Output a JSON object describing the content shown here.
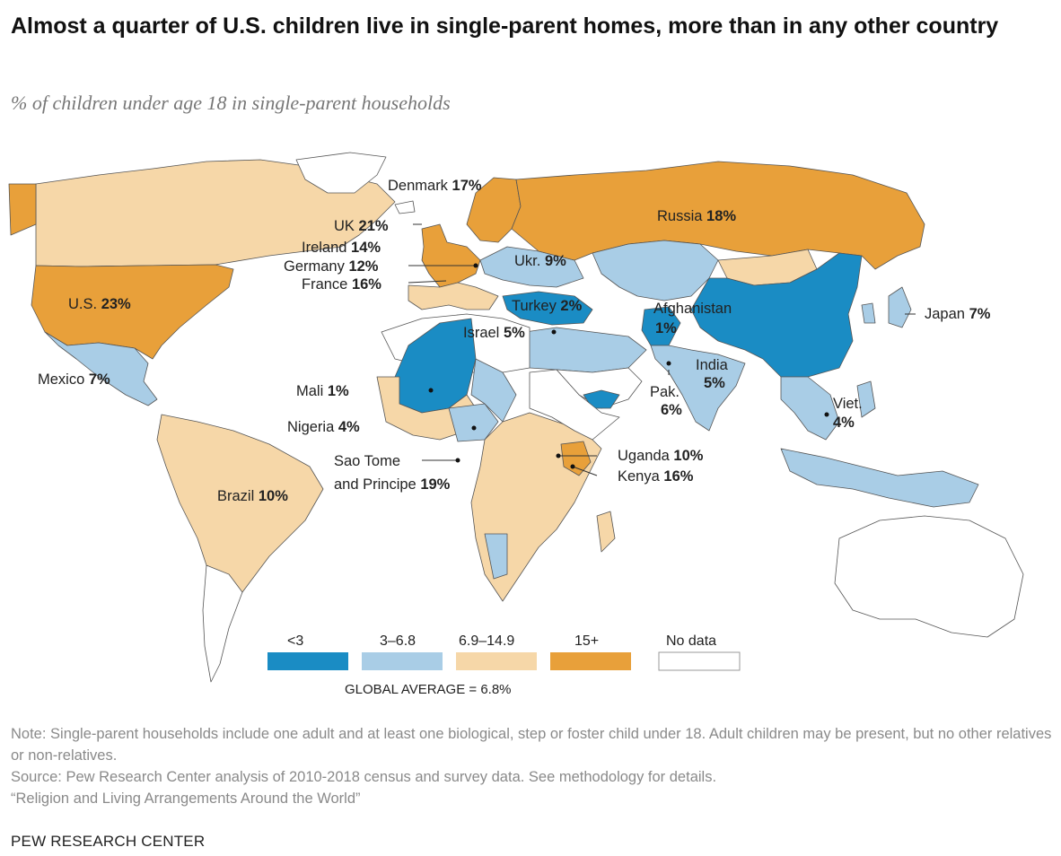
{
  "title": "Almost a quarter of U.S. children live in single-parent homes, more than in any other country",
  "subtitle": "% of children under age 18 in single-parent households",
  "colors": {
    "lt3": "#1a8cc4",
    "c3_6_8": "#a9cde6",
    "c6_9_14_9": "#f6d7a8",
    "c15plus": "#e8a03a",
    "no_data": "#ffffff",
    "border": "#444444"
  },
  "legend": {
    "items": [
      {
        "label": "<3",
        "color": "#1a8cc4"
      },
      {
        "label": "3–6.8",
        "color": "#a9cde6"
      },
      {
        "label": "6.9–14.9",
        "color": "#f6d7a8"
      },
      {
        "label": "15+",
        "color": "#e8a03a"
      },
      {
        "label": "No data",
        "color": "#ffffff"
      }
    ],
    "global_average": "GLOBAL AVERAGE = 6.8%"
  },
  "labels": {
    "denmark": {
      "name": "Denmark",
      "value": "17%"
    },
    "uk": {
      "name": "UK",
      "value": "21%"
    },
    "ireland": {
      "name": "Ireland",
      "value": "14%"
    },
    "germany": {
      "name": "Germany",
      "value": "12%"
    },
    "france": {
      "name": "France",
      "value": "16%"
    },
    "us": {
      "name": "U.S.",
      "value": "23%"
    },
    "mexico": {
      "name": "Mexico",
      "value": "7%"
    },
    "brazil": {
      "name": "Brazil",
      "value": "10%"
    },
    "mali": {
      "name": "Mali",
      "value": "1%"
    },
    "nigeria": {
      "name": "Nigeria",
      "value": "4%"
    },
    "sao_tome": {
      "name_line1": "Sao Tome",
      "name_line2": "and Principe",
      "value": "19%"
    },
    "russia": {
      "name": "Russia",
      "value": "18%"
    },
    "ukraine": {
      "name": "Ukr.",
      "value": "9%"
    },
    "turkey": {
      "name": "Turkey",
      "value": "2%"
    },
    "israel": {
      "name": "Israel",
      "value": "5%"
    },
    "afghanistan": {
      "name": "Afghanistan",
      "value": "1%"
    },
    "india": {
      "name": "India",
      "value": "5%"
    },
    "pakistan": {
      "name": "Pak.",
      "value": "6%"
    },
    "japan": {
      "name": "Japan",
      "value": "7%"
    },
    "vietnam": {
      "name": "Viet.",
      "value": "4%"
    },
    "uganda": {
      "name": "Uganda",
      "value": "10%"
    },
    "kenya": {
      "name": "Kenya",
      "value": "16%"
    }
  },
  "footer": {
    "note": "Note: Single-parent households include one adult and at least one biological, step or foster child under 18. Adult children may be present, but no other relatives or non-relatives.",
    "source": "Source: Pew Research Center analysis of 2010-2018 census and survey data. See methodology for details.",
    "report": "“Religion and Living Arrangements Around the World”",
    "brand": "PEW RESEARCH CENTER"
  }
}
